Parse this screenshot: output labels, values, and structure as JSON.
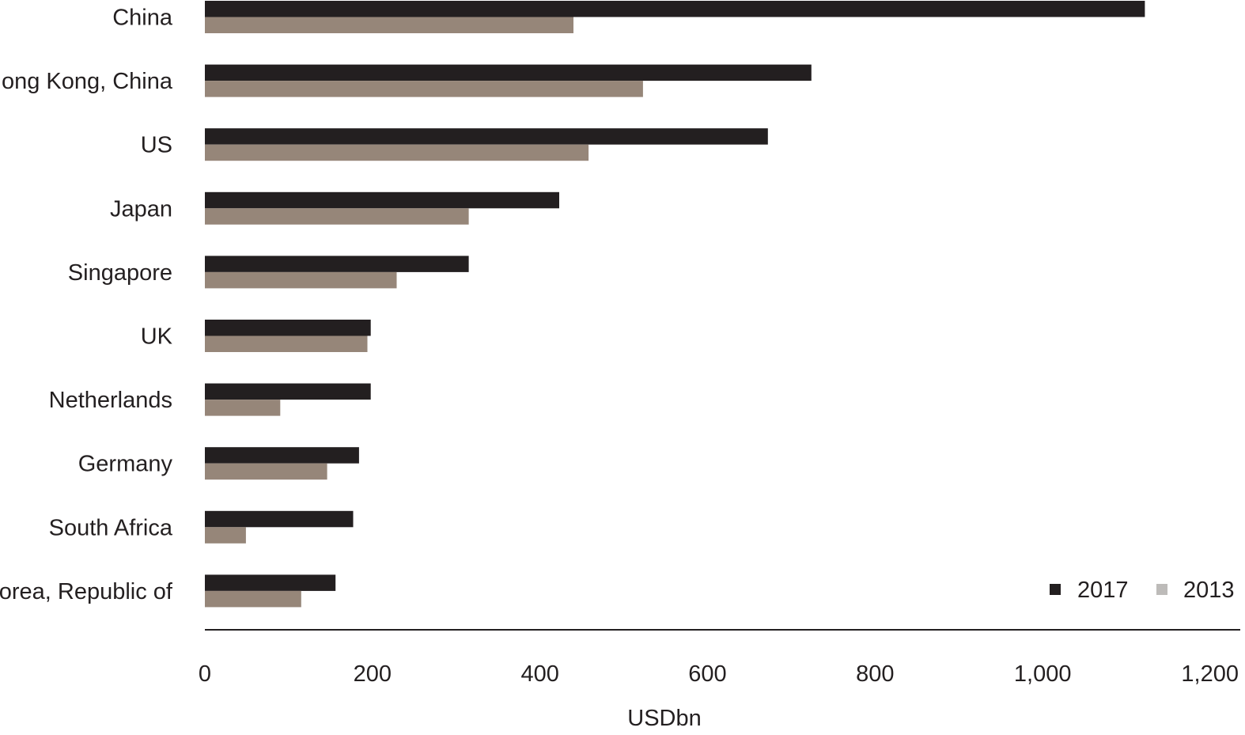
{
  "chart_data": {
    "type": "bar",
    "orientation": "horizontal",
    "categories": [
      "China",
      "Hong Kong, China",
      "US",
      "Japan",
      "Singapore",
      "UK",
      "Netherlands",
      "Germany",
      "South Africa",
      "Korea, Republic of"
    ],
    "series": [
      {
        "name": "2017",
        "color": "#231f20",
        "values": [
          1122,
          724,
          672,
          423,
          315,
          198,
          198,
          184,
          177,
          156
        ]
      },
      {
        "name": "2013",
        "color": "#968679",
        "values": [
          440,
          523,
          458,
          315,
          229,
          194,
          90,
          146,
          49,
          115
        ]
      }
    ],
    "legend_marker_colors": [
      "#231f20",
      "#bdbbb9"
    ],
    "xlabel": "USDbn",
    "xlim": [
      0,
      1200
    ],
    "xticks": [
      0,
      200,
      400,
      600,
      800,
      1000,
      1200
    ],
    "xtick_labels": [
      "0",
      "200",
      "400",
      "600",
      "800",
      "1,000",
      "1,200"
    ],
    "grid": false,
    "legend_position": "bottom-right"
  }
}
